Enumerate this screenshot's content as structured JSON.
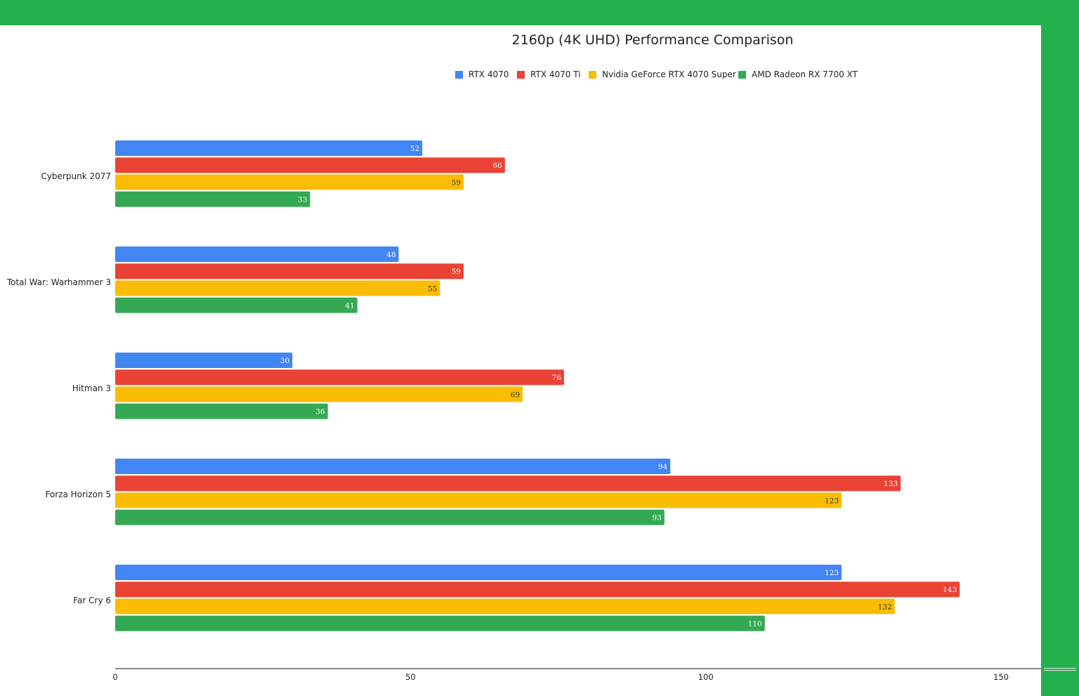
{
  "colors": {
    "frame": "#23b14d",
    "panel": "#ffffff",
    "axis": "#444444"
  },
  "chart_data": {
    "type": "bar",
    "orientation": "horizontal",
    "title": "2160p (4K UHD) Performance Comparison",
    "xlabel": "",
    "ylabel": "",
    "xlim": [
      0,
      150
    ],
    "xticks": [
      0,
      50,
      100,
      150
    ],
    "grid": false,
    "legend_position": "top",
    "categories": [
      "Cyberpunk 2077",
      "Total War: Warhammer 3",
      "Hitman 3",
      "Forza Horizon 5",
      "Far Cry 6"
    ],
    "series": [
      {
        "name": "RTX 4070",
        "color": "#4285f4",
        "label_color": "#ffffff",
        "values": [
          52,
          48,
          30,
          94,
          123
        ]
      },
      {
        "name": "RTX 4070 Ti",
        "color": "#ea4335",
        "label_color": "#ffffff",
        "values": [
          66,
          59,
          76,
          133,
          143
        ]
      },
      {
        "name": "Nvidia GeForce RTX 4070 Super",
        "color": "#fbbc04",
        "label_color": "#333333",
        "values": [
          59,
          55,
          69,
          123,
          132
        ]
      },
      {
        "name": "AMD Radeon RX 7700 XT",
        "color": "#34a853",
        "label_color": "#ffffff",
        "values": [
          33,
          41,
          36,
          93,
          110
        ]
      }
    ]
  }
}
